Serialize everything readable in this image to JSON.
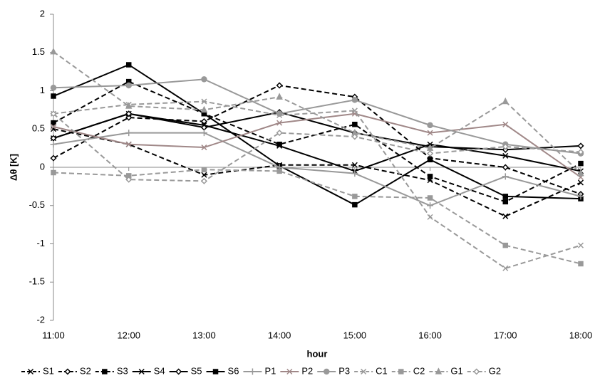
{
  "chart_data": {
    "type": "line",
    "y_label": "Δθ [K]",
    "x_label": "hour",
    "categories": [
      "11:00",
      "12:00",
      "13:00",
      "14:00",
      "15:00",
      "16:00",
      "17:00",
      "18:00"
    ],
    "ylim": [
      -2,
      2
    ],
    "yticks": [
      -2,
      -1.5,
      -1,
      -0.5,
      0,
      0.5,
      1,
      1.5,
      2
    ],
    "series": [
      {
        "name": "S1",
        "color": "#000000",
        "dashed": true,
        "marker": "x",
        "values": [
          0.5,
          0.3,
          -0.1,
          0.03,
          0.03,
          -0.17,
          -0.64,
          -0.2
        ]
      },
      {
        "name": "S2",
        "color": "#000000",
        "dashed": true,
        "marker": "diamond",
        "values": [
          0.12,
          0.65,
          0.6,
          1.07,
          0.92,
          0.12,
          0.0,
          -0.35
        ]
      },
      {
        "name": "S3",
        "color": "#000000",
        "dashed": true,
        "marker": "square",
        "values": [
          0.58,
          1.12,
          0.7,
          0.3,
          0.56,
          -0.12,
          -0.45,
          0.05
        ]
      },
      {
        "name": "S4",
        "color": "#000000",
        "dashed": false,
        "marker": "x",
        "values": [
          0.38,
          0.7,
          0.55,
          0.28,
          -0.05,
          0.3,
          0.15,
          -0.05
        ]
      },
      {
        "name": "S5",
        "color": "#000000",
        "dashed": false,
        "marker": "diamond",
        "values": [
          0.38,
          0.7,
          0.52,
          0.72,
          0.45,
          0.27,
          0.23,
          0.28
        ]
      },
      {
        "name": "S6",
        "color": "#000000",
        "dashed": false,
        "marker": "square",
        "values": [
          0.93,
          1.34,
          0.7,
          0.02,
          -0.49,
          0.1,
          -0.38,
          -0.41
        ]
      },
      {
        "name": "P1",
        "color": "#999999",
        "dashed": false,
        "marker": "plus",
        "values": [
          0.3,
          0.45,
          0.45,
          0.0,
          -0.08,
          -0.5,
          -0.12,
          -0.38
        ]
      },
      {
        "name": "P2",
        "color": "#a08888",
        "dashed": false,
        "marker": "x",
        "values": [
          0.53,
          0.3,
          0.26,
          0.58,
          0.7,
          0.45,
          0.56,
          -0.13
        ]
      },
      {
        "name": "P3",
        "color": "#999999",
        "dashed": false,
        "marker": "circle",
        "values": [
          1.04,
          1.07,
          1.15,
          0.7,
          0.88,
          0.55,
          0.3,
          0.18
        ]
      },
      {
        "name": "C1",
        "color": "#999999",
        "dashed": true,
        "marker": "x",
        "values": [
          0.7,
          0.82,
          0.86,
          0.68,
          0.74,
          -0.65,
          -1.32,
          -1.02
        ]
      },
      {
        "name": "C2",
        "color": "#999999",
        "dashed": true,
        "marker": "square",
        "values": [
          -0.07,
          -0.11,
          -0.03,
          -0.05,
          -0.38,
          -0.4,
          -1.02,
          -1.26
        ]
      },
      {
        "name": "G1",
        "color": "#999999",
        "dashed": true,
        "marker": "triangle",
        "values": [
          1.51,
          0.8,
          0.75,
          0.92,
          0.45,
          0.25,
          0.86,
          -0.08
        ]
      },
      {
        "name": "G2",
        "color": "#999999",
        "dashed": true,
        "marker": "diamond",
        "values": [
          0.7,
          -0.16,
          -0.18,
          0.45,
          0.4,
          0.18,
          0.27,
          0.2
        ]
      }
    ]
  }
}
